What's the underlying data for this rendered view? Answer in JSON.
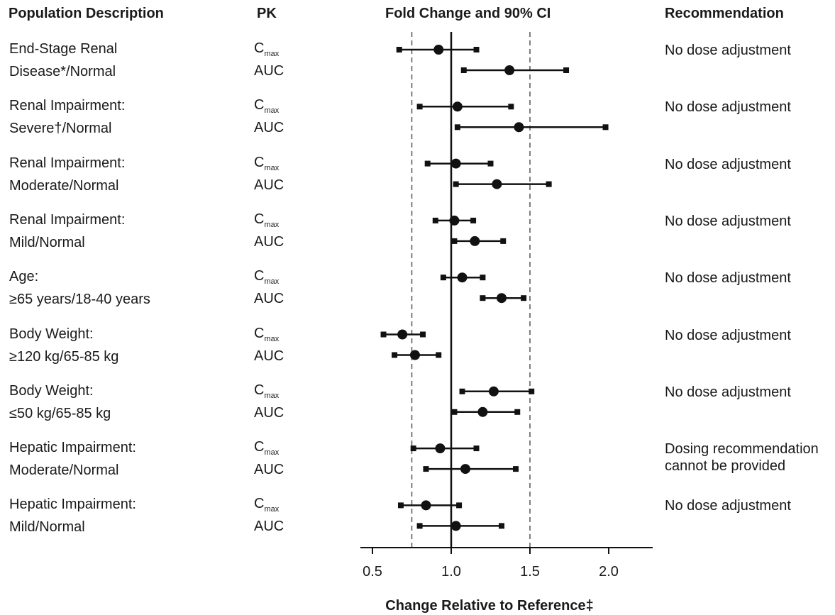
{
  "headers": {
    "population": "Population Description",
    "pk": "PK",
    "fold_change": "Fold Change and 90% CI",
    "recommendation": "Recommendation"
  },
  "pk_labels": {
    "cmax_base": "C",
    "cmax_sub": "max",
    "auc": "AUC"
  },
  "groups": [
    {
      "line1": "End-Stage Renal",
      "line2": "Disease*/Normal",
      "recommendation": [
        "No dose adjustment"
      ]
    },
    {
      "line1": "Renal Impairment:",
      "line2": "Severe†/Normal",
      "recommendation": [
        "No dose adjustment"
      ]
    },
    {
      "line1": "Renal Impairment:",
      "line2": "Moderate/Normal",
      "recommendation": [
        "No dose adjustment"
      ]
    },
    {
      "line1": "Renal Impairment:",
      "line2": "Mild/Normal",
      "recommendation": [
        "No dose adjustment"
      ]
    },
    {
      "line1": "Age:",
      "line2": "≥65 years/18-40 years",
      "recommendation": [
        "No dose adjustment"
      ]
    },
    {
      "line1": "Body Weight:",
      "line2": "≥120 kg/65-85 kg",
      "recommendation": [
        "No dose adjustment"
      ]
    },
    {
      "line1": "Body Weight:",
      "line2": "≤50 kg/65-85 kg",
      "recommendation": [
        "No dose adjustment"
      ]
    },
    {
      "line1": "Hepatic Impairment:",
      "line2": "Moderate/Normal",
      "recommendation": [
        "Dosing recommendation",
        "cannot be provided"
      ]
    },
    {
      "line1": "Hepatic Impairment:",
      "line2": "Mild/Normal",
      "recommendation": [
        "No dose adjustment"
      ]
    }
  ],
  "chart_data": {
    "type": "scatter",
    "subtype": "forest",
    "xlabel": "Change Relative to Reference‡",
    "xlim": [
      0.42,
      2.29
    ],
    "xticks": [
      0.5,
      1.0,
      1.5,
      2.0
    ],
    "xtick_labels": [
      "0.5",
      "1.0",
      "1.5",
      "2.0"
    ],
    "reference_line": 1.0,
    "bounds_lines": [
      0.75,
      1.5
    ],
    "series": [
      {
        "group": 0,
        "pk": "Cmax",
        "estimate": 0.92,
        "lo": 0.67,
        "hi": 1.16
      },
      {
        "group": 0,
        "pk": "AUC",
        "estimate": 1.37,
        "lo": 1.08,
        "hi": 1.73
      },
      {
        "group": 1,
        "pk": "Cmax",
        "estimate": 1.04,
        "lo": 0.8,
        "hi": 1.38
      },
      {
        "group": 1,
        "pk": "AUC",
        "estimate": 1.43,
        "lo": 1.04,
        "hi": 1.98
      },
      {
        "group": 2,
        "pk": "Cmax",
        "estimate": 1.03,
        "lo": 0.85,
        "hi": 1.25
      },
      {
        "group": 2,
        "pk": "AUC",
        "estimate": 1.29,
        "lo": 1.03,
        "hi": 1.62
      },
      {
        "group": 3,
        "pk": "Cmax",
        "estimate": 1.02,
        "lo": 0.9,
        "hi": 1.14
      },
      {
        "group": 3,
        "pk": "AUC",
        "estimate": 1.15,
        "lo": 1.02,
        "hi": 1.33
      },
      {
        "group": 4,
        "pk": "Cmax",
        "estimate": 1.07,
        "lo": 0.95,
        "hi": 1.2
      },
      {
        "group": 4,
        "pk": "AUC",
        "estimate": 1.32,
        "lo": 1.2,
        "hi": 1.46
      },
      {
        "group": 5,
        "pk": "Cmax",
        "estimate": 0.69,
        "lo": 0.57,
        "hi": 0.82
      },
      {
        "group": 5,
        "pk": "AUC",
        "estimate": 0.77,
        "lo": 0.64,
        "hi": 0.92
      },
      {
        "group": 6,
        "pk": "Cmax",
        "estimate": 1.27,
        "lo": 1.07,
        "hi": 1.51
      },
      {
        "group": 6,
        "pk": "AUC",
        "estimate": 1.2,
        "lo": 1.02,
        "hi": 1.42
      },
      {
        "group": 7,
        "pk": "Cmax",
        "estimate": 0.93,
        "lo": 0.76,
        "hi": 1.16
      },
      {
        "group": 7,
        "pk": "AUC",
        "estimate": 1.09,
        "lo": 0.84,
        "hi": 1.41
      },
      {
        "group": 8,
        "pk": "Cmax",
        "estimate": 0.84,
        "lo": 0.68,
        "hi": 1.05
      },
      {
        "group": 8,
        "pk": "AUC",
        "estimate": 1.03,
        "lo": 0.8,
        "hi": 1.32
      }
    ]
  }
}
